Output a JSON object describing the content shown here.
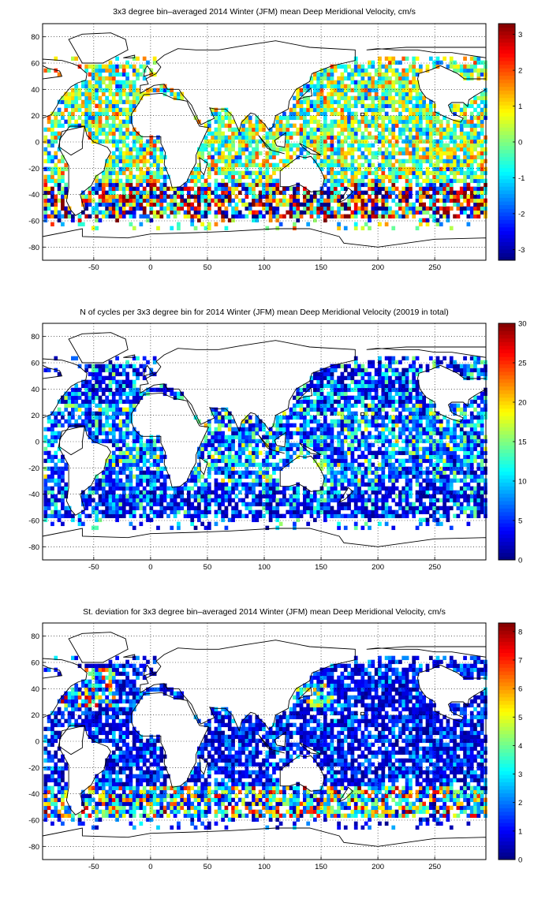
{
  "chart_data": [
    {
      "type": "heatmap",
      "title": "3x3 degree bin–averaged 2014 Winter (JFM) mean Deep Meridional Velocity, cm/s",
      "xlabel": "",
      "ylabel": "",
      "xlim": [
        -95,
        295
      ],
      "ylim": [
        -90,
        90
      ],
      "x_ticks": [
        "-50",
        "0",
        "50",
        "100",
        "150",
        "200",
        "250"
      ],
      "y_ticks": [
        "80",
        "60",
        "40",
        "20",
        "0",
        "-20",
        "-40",
        "-60",
        "-80"
      ],
      "grid": true,
      "colorbar": {
        "colormap": "jet",
        "range": [
          -3.3,
          3.3
        ],
        "ticks": [
          "3",
          "2",
          "1",
          "0",
          "-1",
          "-2",
          "-3"
        ]
      },
      "field": "signed velocity, cm/s — noisy, strongest in the Southern Ocean band"
    },
    {
      "type": "heatmap",
      "title": "N of cycles per 3x3 degree bin for 2014 Winter (JFM) mean Deep Meridional Velocity (20019 in total)",
      "xlabel": "",
      "ylabel": "",
      "xlim": [
        -95,
        295
      ],
      "ylim": [
        -90,
        90
      ],
      "x_ticks": [
        "-50",
        "0",
        "50",
        "100",
        "150",
        "200",
        "250"
      ],
      "y_ticks": [
        "80",
        "60",
        "40",
        "20",
        "0",
        "-20",
        "-40",
        "-60",
        "-80"
      ],
      "grid": true,
      "colorbar": {
        "colormap": "jet",
        "range": [
          0,
          30
        ],
        "ticks": [
          "30",
          "25",
          "20",
          "15",
          "10",
          "5",
          "0"
        ]
      },
      "field": "cycle counts per bin, mostly 0–10"
    },
    {
      "type": "heatmap",
      "title": "St. deviation for 3x3 degree bin–averaged 2014 Winter (JFM) mean Deep Meridional Velocity, cm/s",
      "xlabel": "",
      "ylabel": "",
      "xlim": [
        -95,
        295
      ],
      "ylim": [
        -90,
        90
      ],
      "x_ticks": [
        "-50",
        "0",
        "50",
        "100",
        "150",
        "200",
        "250"
      ],
      "y_ticks": [
        "80",
        "60",
        "40",
        "20",
        "0",
        "-20",
        "-40",
        "-60",
        "-80"
      ],
      "grid": true,
      "colorbar": {
        "colormap": "jet",
        "range": [
          0,
          8.3
        ],
        "ticks": [
          "8",
          "7",
          "6",
          "5",
          "4",
          "3",
          "2",
          "1",
          "0"
        ]
      },
      "field": "standard deviation, cm/s — high in western boundary currents and the Southern Ocean"
    }
  ]
}
